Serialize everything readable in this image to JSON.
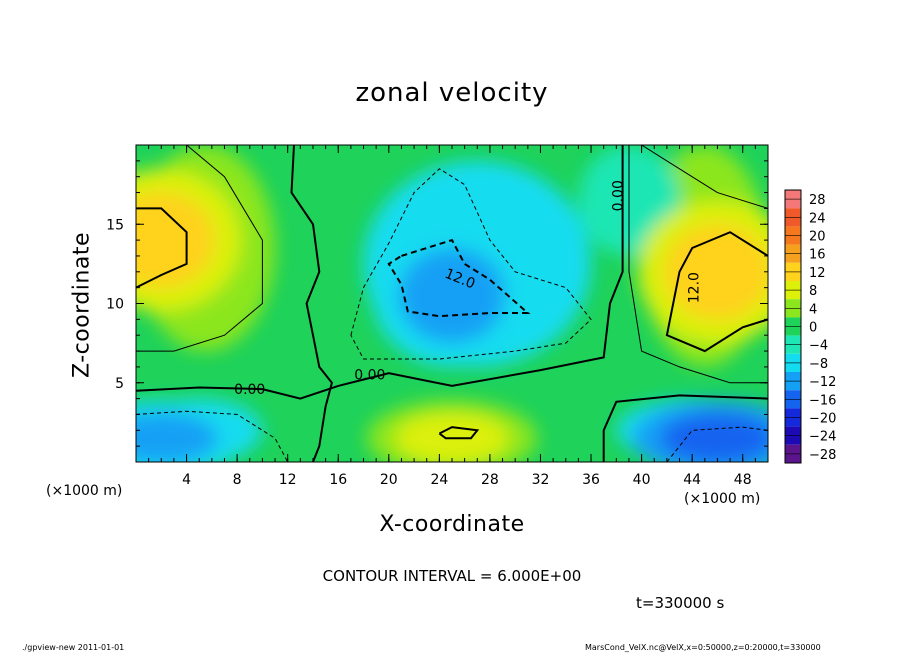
{
  "chart_data": {
    "type": "heatmap",
    "title": "zonal velocity",
    "xlabel": "X-coordinate",
    "ylabel": "Z-coordinate",
    "x_unit": "(×1000 m)",
    "xlim": [
      0,
      50
    ],
    "ylim": [
      0,
      20
    ],
    "x_ticks": [
      4,
      8,
      12,
      16,
      20,
      24,
      28,
      32,
      36,
      40,
      44,
      48
    ],
    "y_ticks": [
      5,
      10,
      15
    ],
    "colorbar": {
      "levels": [
        28,
        24,
        20,
        16,
        12,
        8,
        4,
        0,
        -4,
        -8,
        -12,
        -16,
        -20,
        -24,
        -28
      ],
      "labels": [
        "28",
        "24",
        "20",
        "16",
        "12",
        "8",
        "4",
        "0",
        "−4",
        "−8",
        "−12",
        "−16",
        "−20",
        "−24",
        "−28"
      ],
      "colors": [
        "#f57878",
        "#f05a2a",
        "#f5781e",
        "#f5a01e",
        "#ffd21e",
        "#dcf00a",
        "#8ce61e",
        "#1ed25a",
        "#1ee6b4",
        "#14dcf0",
        "#14a0f5",
        "#1464f0",
        "#1428dc",
        "#1e0ab4",
        "#5a148c"
      ]
    },
    "contour_labels": [
      "0.00",
      "0.00",
      "0.00",
      "12.0",
      "12.0"
    ],
    "field_features": [
      {
        "name": "negative core",
        "x": 25,
        "z": 10.5,
        "value": -12
      },
      {
        "name": "positive lobe left",
        "x": 2,
        "z": 14,
        "value": 12
      },
      {
        "name": "positive lobe right",
        "x": 46,
        "z": 12,
        "value": 12
      },
      {
        "name": "surface positive",
        "x": 25,
        "z": 1.5,
        "value": 10
      },
      {
        "name": "surface negative right",
        "x": 46,
        "z": 1.5,
        "value": -16
      },
      {
        "name": "surface negative left",
        "x": 2,
        "z": 1.5,
        "value": -10
      }
    ]
  },
  "annotations": {
    "contour_interval": "CONTOUR INTERVAL = 6.000E+00",
    "time": "t=330000 s",
    "footer_left": "./gpview-new   2011-01-01",
    "footer_right": "MarsCond_VelX.nc@VelX,x=0:50000,z=0:20000,t=330000"
  }
}
